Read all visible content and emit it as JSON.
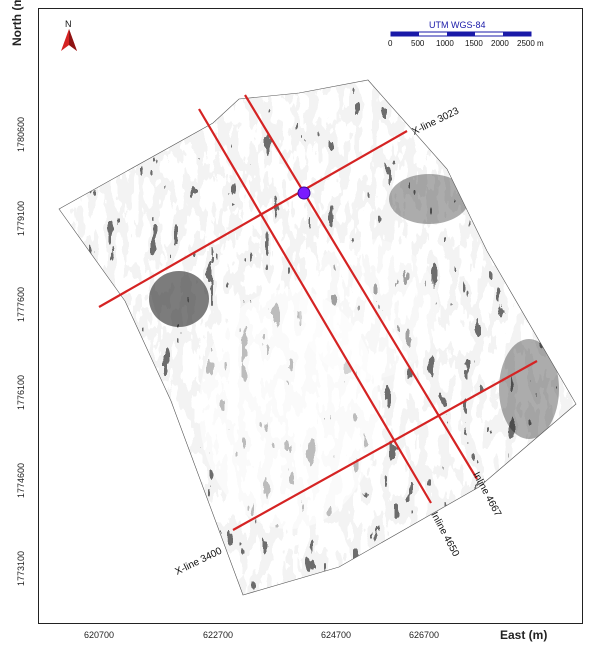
{
  "north_label": "N",
  "scale_bar": {
    "title": "UTM WGS-84",
    "ticks": [
      "0",
      "500",
      "1000",
      "1500",
      "2000",
      "2500 m"
    ]
  },
  "axes": {
    "y_title": "North (m)",
    "x_title": "East (m)",
    "y_ticks": [
      "1780600",
      "1779100",
      "1777600",
      "1776100",
      "1774600",
      "1773100"
    ],
    "x_ticks": [
      "620700",
      "622700",
      "624700",
      "626700"
    ]
  },
  "lines": {
    "xline_top": "X-line 3023",
    "xline_bottom": "X-line 3400",
    "inline_a": "Inline 4650",
    "inline_b": "Inline 4667"
  },
  "colors": {
    "line": "#d52323",
    "marker": "#7a1bff",
    "north_arrow": "#d52323",
    "scale_bar": "#1a1aa8"
  }
}
